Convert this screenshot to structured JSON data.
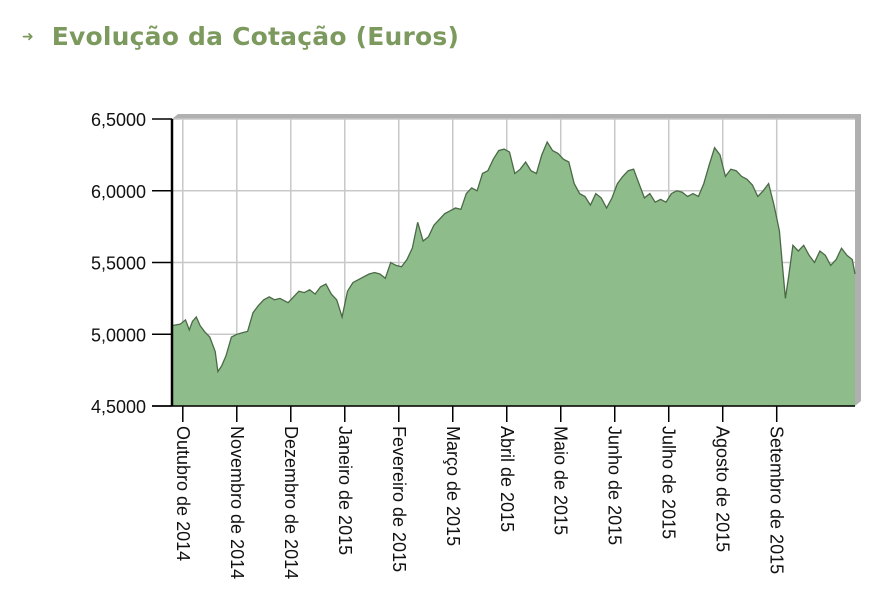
{
  "header": {
    "arrow_icon": "arrow-right-icon",
    "title": "Evolução da Cotação (Euros)"
  },
  "colors": {
    "title": "#7d9a5e",
    "area_fill": "#8fbc8b",
    "area_line": "#4a6a46",
    "grid": "#c8c8c8",
    "frame_shadow": "#b0b0b0"
  },
  "chart_data": {
    "type": "area",
    "title": "Evolução da Cotação (Euros)",
    "xlabel": "",
    "ylabel": "",
    "ylim": [
      4.5,
      6.5
    ],
    "y_ticks": [
      {
        "value": 6.5,
        "label": "6,5000"
      },
      {
        "value": 6.0,
        "label": "6,0000"
      },
      {
        "value": 5.5,
        "label": "5,5000"
      },
      {
        "value": 5.0,
        "label": "5,0000"
      },
      {
        "value": 4.5,
        "label": "4,5000"
      }
    ],
    "x_ticks": [
      {
        "t": 0.5,
        "label": "Outubro de 2014"
      },
      {
        "t": 1.5,
        "label": "Novembro de 2014"
      },
      {
        "t": 2.5,
        "label": "Dezembro de 2014"
      },
      {
        "t": 3.5,
        "label": "Janeiro de 2015"
      },
      {
        "t": 4.5,
        "label": "Fevereiro de 2015"
      },
      {
        "t": 5.5,
        "label": "Março de 2015"
      },
      {
        "t": 6.5,
        "label": "Abril de 2015"
      },
      {
        "t": 7.5,
        "label": "Maio de 2015"
      },
      {
        "t": 8.5,
        "label": "Junho de 2015"
      },
      {
        "t": 9.5,
        "label": "Julho de 2015"
      },
      {
        "t": 10.5,
        "label": "Agosto de 2015"
      },
      {
        "t": 11.5,
        "label": "Setembro de 2015"
      }
    ],
    "grid": true,
    "series": [
      {
        "values": [
          [
            0.3,
            5.06
          ],
          [
            0.45,
            5.07
          ],
          [
            0.55,
            5.1
          ],
          [
            0.62,
            5.03
          ],
          [
            0.68,
            5.09
          ],
          [
            0.75,
            5.12
          ],
          [
            0.82,
            5.06
          ],
          [
            0.9,
            5.02
          ],
          [
            1.0,
            4.98
          ],
          [
            1.1,
            4.88
          ],
          [
            1.15,
            4.74
          ],
          [
            1.22,
            4.78
          ],
          [
            1.3,
            4.85
          ],
          [
            1.4,
            4.98
          ],
          [
            1.5,
            5.0
          ],
          [
            1.6,
            5.01
          ],
          [
            1.7,
            5.02
          ],
          [
            1.8,
            5.15
          ],
          [
            1.9,
            5.2
          ],
          [
            2.0,
            5.24
          ],
          [
            2.1,
            5.26
          ],
          [
            2.2,
            5.24
          ],
          [
            2.3,
            5.25
          ],
          [
            2.45,
            5.22
          ],
          [
            2.55,
            5.26
          ],
          [
            2.65,
            5.3
          ],
          [
            2.75,
            5.29
          ],
          [
            2.85,
            5.31
          ],
          [
            2.95,
            5.28
          ],
          [
            3.05,
            5.33
          ],
          [
            3.15,
            5.35
          ],
          [
            3.25,
            5.28
          ],
          [
            3.35,
            5.24
          ],
          [
            3.45,
            5.12
          ],
          [
            3.55,
            5.3
          ],
          [
            3.65,
            5.36
          ],
          [
            3.75,
            5.38
          ],
          [
            3.85,
            5.4
          ],
          [
            3.95,
            5.42
          ],
          [
            4.05,
            5.43
          ],
          [
            4.15,
            5.42
          ],
          [
            4.25,
            5.39
          ],
          [
            4.35,
            5.5
          ],
          [
            4.45,
            5.48
          ],
          [
            4.55,
            5.47
          ],
          [
            4.65,
            5.52
          ],
          [
            4.75,
            5.6
          ],
          [
            4.85,
            5.78
          ],
          [
            4.95,
            5.65
          ],
          [
            5.05,
            5.68
          ],
          [
            5.15,
            5.76
          ],
          [
            5.25,
            5.8
          ],
          [
            5.35,
            5.84
          ],
          [
            5.45,
            5.86
          ],
          [
            5.55,
            5.88
          ],
          [
            5.65,
            5.87
          ],
          [
            5.75,
            5.98
          ],
          [
            5.85,
            6.02
          ],
          [
            5.95,
            6.0
          ],
          [
            6.05,
            6.12
          ],
          [
            6.15,
            6.14
          ],
          [
            6.25,
            6.22
          ],
          [
            6.35,
            6.28
          ],
          [
            6.45,
            6.29
          ],
          [
            6.55,
            6.27
          ],
          [
            6.65,
            6.12
          ],
          [
            6.75,
            6.15
          ],
          [
            6.85,
            6.2
          ],
          [
            6.95,
            6.14
          ],
          [
            7.05,
            6.12
          ],
          [
            7.15,
            6.25
          ],
          [
            7.25,
            6.34
          ],
          [
            7.35,
            6.28
          ],
          [
            7.45,
            6.26
          ],
          [
            7.55,
            6.22
          ],
          [
            7.65,
            6.2
          ],
          [
            7.75,
            6.05
          ],
          [
            7.85,
            5.98
          ],
          [
            7.95,
            5.96
          ],
          [
            8.05,
            5.9
          ],
          [
            8.15,
            5.98
          ],
          [
            8.25,
            5.95
          ],
          [
            8.35,
            5.88
          ],
          [
            8.45,
            5.95
          ],
          [
            8.55,
            6.05
          ],
          [
            8.65,
            6.1
          ],
          [
            8.75,
            6.14
          ],
          [
            8.85,
            6.15
          ],
          [
            8.95,
            6.05
          ],
          [
            9.05,
            5.95
          ],
          [
            9.15,
            5.98
          ],
          [
            9.25,
            5.92
          ],
          [
            9.35,
            5.94
          ],
          [
            9.45,
            5.92
          ],
          [
            9.55,
            5.98
          ],
          [
            9.65,
            6.0
          ],
          [
            9.75,
            5.99
          ],
          [
            9.85,
            5.96
          ],
          [
            9.95,
            5.98
          ],
          [
            10.05,
            5.96
          ],
          [
            10.15,
            6.05
          ],
          [
            10.25,
            6.18
          ],
          [
            10.35,
            6.3
          ],
          [
            10.45,
            6.25
          ],
          [
            10.55,
            6.1
          ],
          [
            10.65,
            6.15
          ],
          [
            10.75,
            6.14
          ],
          [
            10.85,
            6.1
          ],
          [
            10.95,
            6.08
          ],
          [
            11.05,
            6.04
          ],
          [
            11.15,
            5.96
          ],
          [
            11.25,
            6.0
          ],
          [
            11.35,
            6.05
          ],
          [
            11.45,
            5.9
          ],
          [
            11.55,
            5.72
          ],
          [
            11.62,
            5.42
          ],
          [
            11.66,
            5.25
          ],
          [
            11.72,
            5.4
          ],
          [
            11.8,
            5.62
          ],
          [
            11.9,
            5.58
          ],
          [
            12.0,
            5.62
          ],
          [
            12.1,
            5.55
          ],
          [
            12.2,
            5.5
          ],
          [
            12.3,
            5.58
          ],
          [
            12.4,
            5.55
          ],
          [
            12.5,
            5.48
          ],
          [
            12.6,
            5.52
          ],
          [
            12.7,
            5.6
          ],
          [
            12.8,
            5.55
          ],
          [
            12.9,
            5.52
          ],
          [
            12.95,
            5.42
          ]
        ]
      }
    ]
  }
}
